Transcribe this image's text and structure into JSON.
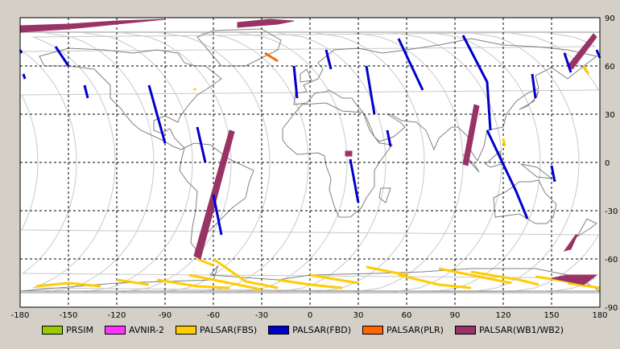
{
  "map": {
    "x_ticks": [
      "-180",
      "-150",
      "-120",
      "-90",
      "-60",
      "-30",
      "0",
      "30",
      "60",
      "90",
      "120",
      "150",
      "180"
    ],
    "y_ticks": [
      "90",
      "60",
      "30",
      "0",
      "-30",
      "-60",
      "-90"
    ],
    "lon_range": [
      -180,
      180
    ],
    "lat_range": [
      -90,
      90
    ],
    "grid": "dashed",
    "orbit_color": "#c8c8c8",
    "coast_color": "#808080"
  },
  "legend": [
    {
      "label": "PRSIM",
      "color": "#99cc00"
    },
    {
      "label": "AVNIR-2",
      "color": "#ff33ff"
    },
    {
      "label": "PALSAR(FBS)",
      "color": "#ffcc00"
    },
    {
      "label": "PALSAR(FBD)",
      "color": "#0000cc"
    },
    {
      "label": "PALSAR(PLR)",
      "color": "#ff6600"
    },
    {
      "label": "PALSAR(WB1/WB2)",
      "color": "#993366"
    }
  ],
  "swaths": {
    "wb": [
      {
        "pts": [
          [
            -180,
            85
          ],
          [
            -150,
            86
          ],
          [
            -120,
            88
          ],
          [
            -90,
            89
          ],
          [
            -150,
            83
          ],
          [
            -180,
            81
          ]
        ]
      },
      {
        "pts": [
          [
            -45,
            84
          ],
          [
            -20,
            86
          ],
          [
            -10,
            88
          ],
          [
            -25,
            89
          ],
          [
            -45,
            87
          ]
        ]
      },
      {
        "pts": [
          [
            -50,
            20
          ],
          [
            -47,
            19
          ],
          [
            -68,
            -60
          ],
          [
            -72,
            -58
          ]
        ]
      },
      {
        "pts": [
          [
            95,
            -1
          ],
          [
            98,
            -2
          ],
          [
            105,
            35
          ],
          [
            102,
            36
          ]
        ]
      },
      {
        "pts": [
          [
            160,
            60
          ],
          [
            163,
            58
          ],
          [
            178,
            78
          ],
          [
            176,
            80
          ]
        ]
      },
      {
        "pts": [
          [
            158,
            -55
          ],
          [
            162,
            -54
          ],
          [
            166,
            -45
          ],
          [
            165,
            -45
          ]
        ]
      },
      {
        "pts": [
          [
            150,
            -72
          ],
          [
            170,
            -76
          ],
          [
            178,
            -70
          ],
          [
            160,
            -70
          ]
        ]
      },
      {
        "pts": [
          [
            22,
            7
          ],
          [
            26,
            7
          ],
          [
            26,
            4
          ],
          [
            22,
            4
          ]
        ]
      }
    ],
    "fbd": [
      {
        "pts": [
          [
            -180,
            70
          ],
          [
            -179,
            68
          ]
        ]
      },
      {
        "pts": [
          [
            -158,
            72
          ],
          [
            -150,
            60
          ]
        ]
      },
      {
        "pts": [
          [
            -178,
            55
          ],
          [
            -177,
            52
          ]
        ]
      },
      {
        "pts": [
          [
            -140,
            48
          ],
          [
            -138,
            40
          ]
        ]
      },
      {
        "pts": [
          [
            -100,
            48
          ],
          [
            -90,
            12
          ]
        ]
      },
      {
        "pts": [
          [
            -70,
            22
          ],
          [
            -65,
            0
          ]
        ]
      },
      {
        "pts": [
          [
            -60,
            -20
          ],
          [
            -55,
            -45
          ]
        ]
      },
      {
        "pts": [
          [
            -10,
            60
          ],
          [
            -8,
            40
          ]
        ]
      },
      {
        "pts": [
          [
            10,
            70
          ],
          [
            13,
            58
          ]
        ]
      },
      {
        "pts": [
          [
            35,
            60
          ],
          [
            40,
            30
          ]
        ]
      },
      {
        "pts": [
          [
            25,
            2
          ],
          [
            30,
            -25
          ]
        ]
      },
      {
        "pts": [
          [
            48,
            20
          ],
          [
            50,
            10
          ]
        ]
      },
      {
        "pts": [
          [
            55,
            77
          ],
          [
            70,
            45
          ]
        ]
      },
      {
        "pts": [
          [
            95,
            79
          ],
          [
            110,
            50
          ],
          [
            112,
            20
          ]
        ]
      },
      {
        "pts": [
          [
            110,
            20
          ],
          [
            128,
            -18
          ],
          [
            135,
            -35
          ]
        ]
      },
      {
        "pts": [
          [
            138,
            55
          ],
          [
            140,
            40
          ]
        ]
      },
      {
        "pts": [
          [
            150,
            -2
          ],
          [
            152,
            -12
          ]
        ]
      },
      {
        "pts": [
          [
            158,
            68
          ],
          [
            162,
            56
          ]
        ]
      },
      {
        "pts": [
          [
            178,
            70
          ],
          [
            180,
            65
          ]
        ]
      }
    ],
    "fbs": [
      {
        "pts": [
          [
            -170,
            -77
          ],
          [
            -150,
            -75
          ],
          [
            -130,
            -77
          ]
        ]
      },
      {
        "pts": [
          [
            -120,
            -73
          ],
          [
            -100,
            -76
          ]
        ]
      },
      {
        "pts": [
          [
            -95,
            -73
          ],
          [
            -70,
            -77
          ],
          [
            -50,
            -78
          ]
        ]
      },
      {
        "pts": [
          [
            -75,
            -70
          ],
          [
            -50,
            -75
          ],
          [
            -30,
            -79
          ]
        ]
      },
      {
        "pts": [
          [
            -60,
            -60
          ],
          [
            -40,
            -74
          ],
          [
            -20,
            -78
          ]
        ]
      },
      {
        "pts": [
          [
            -20,
            -73
          ],
          [
            0,
            -76
          ],
          [
            20,
            -78
          ]
        ]
      },
      {
        "pts": [
          [
            0,
            -70
          ],
          [
            30,
            -75
          ]
        ]
      },
      {
        "pts": [
          [
            35,
            -65
          ],
          [
            60,
            -70
          ]
        ]
      },
      {
        "pts": [
          [
            55,
            -70
          ],
          [
            80,
            -76
          ],
          [
            100,
            -78
          ]
        ]
      },
      {
        "pts": [
          [
            80,
            -66
          ],
          [
            110,
            -72
          ],
          [
            125,
            -75
          ]
        ]
      },
      {
        "pts": [
          [
            100,
            -68
          ],
          [
            130,
            -73
          ],
          [
            142,
            -76
          ]
        ]
      },
      {
        "pts": [
          [
            140,
            -71
          ],
          [
            160,
            -74
          ]
        ]
      },
      {
        "pts": [
          [
            160,
            -75
          ],
          [
            180,
            -78
          ]
        ]
      },
      {
        "pts": [
          [
            -70,
            -60
          ],
          [
            -60,
            -64
          ]
        ]
      },
      {
        "pts": [
          [
            -72,
            46
          ],
          [
            -71,
            45
          ]
        ]
      },
      {
        "pts": [
          [
            120,
            15
          ],
          [
            121,
            10
          ]
        ]
      },
      {
        "pts": [
          [
            170,
            60
          ],
          [
            173,
            55
          ]
        ]
      }
    ],
    "plr": [
      {
        "pts": [
          [
            -28,
            68
          ],
          [
            -20,
            63
          ]
        ]
      }
    ]
  },
  "land": [
    [
      [
        -168,
        66
      ],
      [
        -150,
        71
      ],
      [
        -128,
        70
      ],
      [
        -110,
        68
      ],
      [
        -95,
        70
      ],
      [
        -82,
        68
      ],
      [
        -78,
        62
      ],
      [
        -72,
        60
      ],
      [
        -65,
        60
      ],
      [
        -55,
        52
      ],
      [
        -65,
        45
      ],
      [
        -70,
        42
      ],
      [
        -76,
        35
      ],
      [
        -81,
        28
      ],
      [
        -82,
        25
      ],
      [
        -90,
        29
      ],
      [
        -97,
        26
      ],
      [
        -97,
        20
      ],
      [
        -92,
        18
      ],
      [
        -87,
        21
      ],
      [
        -84,
        15
      ],
      [
        -78,
        9
      ],
      [
        -80,
        8
      ],
      [
        -85,
        10
      ],
      [
        -92,
        14
      ],
      [
        -105,
        20
      ],
      [
        -110,
        24
      ],
      [
        -115,
        30
      ],
      [
        -117,
        33
      ],
      [
        -124,
        40
      ],
      [
        -124,
        48
      ],
      [
        -134,
        58
      ],
      [
        -150,
        60
      ],
      [
        -165,
        60
      ],
      [
        -168,
        66
      ]
    ],
    [
      [
        -78,
        9
      ],
      [
        -72,
        12
      ],
      [
        -62,
        11
      ],
      [
        -50,
        2
      ],
      [
        -35,
        -5
      ],
      [
        -38,
        -13
      ],
      [
        -40,
        -22
      ],
      [
        -48,
        -28
      ],
      [
        -58,
        -38
      ],
      [
        -65,
        -45
      ],
      [
        -68,
        -52
      ],
      [
        -70,
        -55
      ],
      [
        -74,
        -50
      ],
      [
        -73,
        -40
      ],
      [
        -71,
        -30
      ],
      [
        -70,
        -18
      ],
      [
        -76,
        -12
      ],
      [
        -81,
        -5
      ],
      [
        -80,
        1
      ],
      [
        -78,
        9
      ]
    ],
    [
      [
        -55,
        60
      ],
      [
        -40,
        60
      ],
      [
        -20,
        70
      ],
      [
        -18,
        76
      ],
      [
        -30,
        83
      ],
      [
        -60,
        82
      ],
      [
        -70,
        78
      ],
      [
        -55,
        60
      ]
    ],
    [
      [
        -10,
        36
      ],
      [
        -9,
        43
      ],
      [
        -2,
        44
      ],
      [
        -4,
        48
      ],
      [
        5,
        52
      ],
      [
        8,
        58
      ],
      [
        5,
        62
      ],
      [
        15,
        70
      ],
      [
        30,
        71
      ],
      [
        45,
        68
      ],
      [
        60,
        70
      ],
      [
        80,
        73
      ],
      [
        100,
        77
      ],
      [
        120,
        73
      ],
      [
        140,
        72
      ],
      [
        160,
        70
      ],
      [
        178,
        66
      ],
      [
        170,
        60
      ],
      [
        160,
        52
      ],
      [
        150,
        59
      ],
      [
        140,
        54
      ],
      [
        142,
        46
      ],
      [
        135,
        43
      ],
      [
        128,
        38
      ],
      [
        122,
        30
      ],
      [
        120,
        22
      ],
      [
        110,
        20
      ],
      [
        108,
        10
      ],
      [
        104,
        1
      ],
      [
        100,
        7
      ],
      [
        98,
        16
      ],
      [
        92,
        22
      ],
      [
        88,
        22
      ],
      [
        80,
        15
      ],
      [
        77,
        8
      ],
      [
        72,
        20
      ],
      [
        66,
        25
      ],
      [
        57,
        26
      ],
      [
        50,
        30
      ],
      [
        48,
        30
      ],
      [
        56,
        25
      ],
      [
        59,
        22
      ],
      [
        52,
        16
      ],
      [
        43,
        13
      ],
      [
        40,
        16
      ],
      [
        35,
        28
      ],
      [
        33,
        31
      ],
      [
        28,
        37
      ],
      [
        26,
        40
      ],
      [
        20,
        40
      ],
      [
        12,
        45
      ],
      [
        10,
        44
      ],
      [
        3,
        43
      ],
      [
        -2,
        37
      ],
      [
        -10,
        36
      ]
    ],
    [
      [
        -17,
        21
      ],
      [
        -17,
        14
      ],
      [
        -14,
        10
      ],
      [
        -8,
        5
      ],
      [
        5,
        6
      ],
      [
        9,
        4
      ],
      [
        10,
        -2
      ],
      [
        13,
        -10
      ],
      [
        12,
        -17
      ],
      [
        15,
        -27
      ],
      [
        18,
        -34
      ],
      [
        25,
        -34
      ],
      [
        32,
        -28
      ],
      [
        35,
        -22
      ],
      [
        40,
        -15
      ],
      [
        40,
        -5
      ],
      [
        43,
        0
      ],
      [
        51,
        11
      ],
      [
        43,
        12
      ],
      [
        37,
        20
      ],
      [
        33,
        31
      ],
      [
        20,
        32
      ],
      [
        10,
        37
      ],
      [
        -5,
        36
      ],
      [
        -10,
        30
      ],
      [
        -17,
        21
      ]
    ],
    [
      [
        114,
        -22
      ],
      [
        122,
        -18
      ],
      [
        130,
        -12
      ],
      [
        137,
        -12
      ],
      [
        142,
        -11
      ],
      [
        146,
        -19
      ],
      [
        153,
        -26
      ],
      [
        151,
        -34
      ],
      [
        147,
        -38
      ],
      [
        140,
        -38
      ],
      [
        135,
        -35
      ],
      [
        130,
        -32
      ],
      [
        115,
        -34
      ],
      [
        114,
        -22
      ]
    ],
    [
      [
        -180,
        -80
      ],
      [
        -120,
        -75
      ],
      [
        -60,
        -73
      ],
      [
        -57,
        -64
      ],
      [
        -62,
        -70
      ],
      [
        -20,
        -73
      ],
      [
        0,
        -70
      ],
      [
        40,
        -69
      ],
      [
        70,
        -68
      ],
      [
        100,
        -66
      ],
      [
        140,
        -66
      ],
      [
        165,
        -71
      ],
      [
        180,
        -80
      ]
    ],
    [
      [
        95,
        5
      ],
      [
        105,
        -6
      ],
      [
        102,
        -1
      ],
      [
        95,
        5
      ]
    ],
    [
      [
        109,
        -1
      ],
      [
        118,
        7
      ],
      [
        119,
        -1
      ],
      [
        112,
        -3
      ],
      [
        109,
        -1
      ]
    ],
    [
      [
        131,
        -1
      ],
      [
        141,
        -3
      ],
      [
        150,
        -10
      ],
      [
        141,
        -9
      ],
      [
        131,
        -1
      ]
    ],
    [
      [
        44,
        -16
      ],
      [
        50,
        -16
      ],
      [
        47,
        -25
      ],
      [
        43,
        -22
      ],
      [
        44,
        -16
      ]
    ],
    [
      [
        -6,
        50
      ],
      [
        1,
        51
      ],
      [
        -2,
        58
      ],
      [
        -6,
        55
      ],
      [
        -6,
        50
      ]
    ],
    [
      [
        130,
        33
      ],
      [
        135,
        35
      ],
      [
        141,
        41
      ],
      [
        142,
        45
      ],
      [
        139,
        38
      ],
      [
        130,
        33
      ]
    ],
    [
      [
        166,
        -46
      ],
      [
        174,
        -41
      ],
      [
        178,
        -38
      ],
      [
        172,
        -35
      ],
      [
        166,
        -46
      ]
    ]
  ]
}
